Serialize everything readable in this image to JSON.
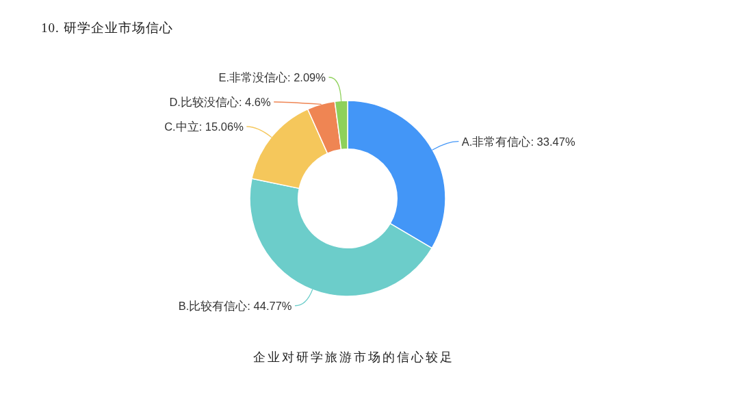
{
  "chart_data": {
    "type": "donut",
    "title": "10. 研学企业市场信心",
    "categories": [
      "A.非常有信心",
      "B.比较有信心",
      "C.中立",
      "D.比较没信心",
      "E.非常没信心"
    ],
    "values": [
      33.47,
      44.77,
      15.06,
      4.6,
      2.09
    ],
    "value_labels": [
      "33.47%",
      "44.77%",
      "15.06%",
      "4.6%",
      "2.09%"
    ],
    "colors": [
      "#4396f7",
      "#6ccdca",
      "#f5c75b",
      "#ef8553",
      "#8ed15a"
    ],
    "annotations": [
      "企业对研学旅游市场的信心较足"
    ]
  }
}
